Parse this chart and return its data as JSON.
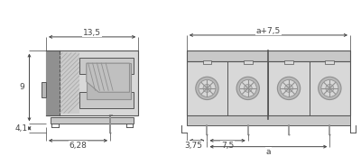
{
  "bg_color": "#ffffff",
  "line_color": "#555555",
  "dim_color": "#444444",
  "body_fill": "#d8d8d8",
  "body_fill2": "#c8c8c8",
  "body_dark": "#909090",
  "body_mid": "#b8b8b8",
  "hatch_color": "#aaaaaa",
  "pin_color": "#888888",
  "figsize": [
    4.0,
    1.73
  ],
  "dpi": 100,
  "fontsize": 6.5,
  "labels": {
    "dim_135": "13,5",
    "dim_628": "6,28",
    "dim_9": "9",
    "dim_41": "4,1",
    "dim_a75": "a+7,5",
    "dim_375": "3,75",
    "dim_75": "7,5",
    "dim_a": "a"
  }
}
